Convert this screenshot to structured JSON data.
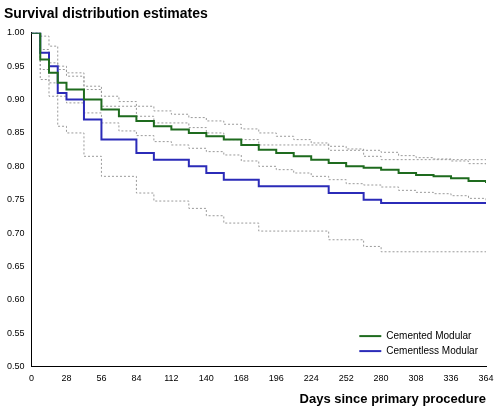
{
  "chart_data": {
    "type": "line",
    "title": "Survival distribution estimates",
    "x_label": "Days since primary procedure",
    "x": [
      0,
      7,
      14,
      21,
      28,
      42,
      56,
      70,
      84,
      98,
      112,
      126,
      140,
      154,
      168,
      182,
      196,
      210,
      224,
      238,
      252,
      266,
      280,
      294,
      308,
      322,
      336,
      350,
      364
    ],
    "series": [
      {
        "name": "Cemented Modular",
        "color": "#1e6b1e",
        "line_style": "solid",
        "values": [
          1.0,
          0.96,
          0.94,
          0.925,
          0.915,
          0.9,
          0.885,
          0.875,
          0.868,
          0.86,
          0.855,
          0.85,
          0.845,
          0.84,
          0.832,
          0.825,
          0.82,
          0.815,
          0.81,
          0.805,
          0.8,
          0.798,
          0.795,
          0.79,
          0.787,
          0.785,
          0.782,
          0.778,
          0.775
        ],
        "ci_upper": [
          1.0,
          0.975,
          0.955,
          0.945,
          0.935,
          0.92,
          0.905,
          0.897,
          0.89,
          0.883,
          0.878,
          0.873,
          0.868,
          0.863,
          0.856,
          0.85,
          0.845,
          0.84,
          0.835,
          0.83,
          0.826,
          0.824,
          0.821,
          0.816,
          0.813,
          0.811,
          0.808,
          0.804,
          0.801
        ],
        "ci_lower": [
          1.0,
          0.945,
          0.925,
          0.905,
          0.895,
          0.88,
          0.865,
          0.853,
          0.846,
          0.837,
          0.832,
          0.827,
          0.822,
          0.817,
          0.808,
          0.8,
          0.795,
          0.79,
          0.785,
          0.78,
          0.774,
          0.772,
          0.769,
          0.764,
          0.761,
          0.759,
          0.756,
          0.752,
          0.749
        ]
      },
      {
        "name": "Cementless Modular",
        "color": "#2b2bb8",
        "line_style": "solid",
        "values": [
          1.0,
          0.97,
          0.95,
          0.91,
          0.9,
          0.87,
          0.84,
          0.84,
          0.82,
          0.81,
          0.81,
          0.8,
          0.79,
          0.78,
          0.78,
          0.77,
          0.77,
          0.77,
          0.77,
          0.76,
          0.76,
          0.75,
          0.745,
          0.745,
          0.745,
          0.745,
          0.745,
          0.745,
          0.745
        ],
        "ci_upper": [
          1.0,
          0.995,
          0.98,
          0.95,
          0.94,
          0.915,
          0.89,
          0.89,
          0.875,
          0.865,
          0.865,
          0.858,
          0.85,
          0.84,
          0.84,
          0.832,
          0.832,
          0.832,
          0.832,
          0.824,
          0.824,
          0.815,
          0.81,
          0.81,
          0.81,
          0.81,
          0.81,
          0.81,
          0.81
        ],
        "ci_lower": [
          1.0,
          0.93,
          0.905,
          0.86,
          0.85,
          0.815,
          0.785,
          0.785,
          0.76,
          0.748,
          0.748,
          0.737,
          0.726,
          0.715,
          0.715,
          0.703,
          0.703,
          0.703,
          0.703,
          0.69,
          0.69,
          0.68,
          0.672,
          0.672,
          0.672,
          0.672,
          0.672,
          0.672,
          0.672
        ]
      }
    ],
    "xlim": [
      0,
      364
    ],
    "xticks": [
      0,
      28,
      56,
      84,
      112,
      140,
      168,
      196,
      224,
      252,
      280,
      308,
      336,
      364
    ],
    "ylim": [
      0.5,
      1.0
    ],
    "yticks": [
      {
        "value": 0.5,
        "label": "0.50"
      },
      {
        "value": 0.55,
        "label": "0.55"
      },
      {
        "value": 0.6,
        "label": "0.60"
      },
      {
        "value": 0.65,
        "label": "0.65"
      },
      {
        "value": 0.7,
        "label": "0.70"
      },
      {
        "value": 0.75,
        "label": "0.75"
      },
      {
        "value": 0.8,
        "label": "0.80"
      },
      {
        "value": 0.85,
        "label": "0.85"
      },
      {
        "value": 0.9,
        "label": "0.90"
      },
      {
        "value": 0.95,
        "label": "0.95"
      },
      {
        "value": 1.0,
        "label": "1.00"
      }
    ],
    "grid": false,
    "legend": "lower right"
  }
}
